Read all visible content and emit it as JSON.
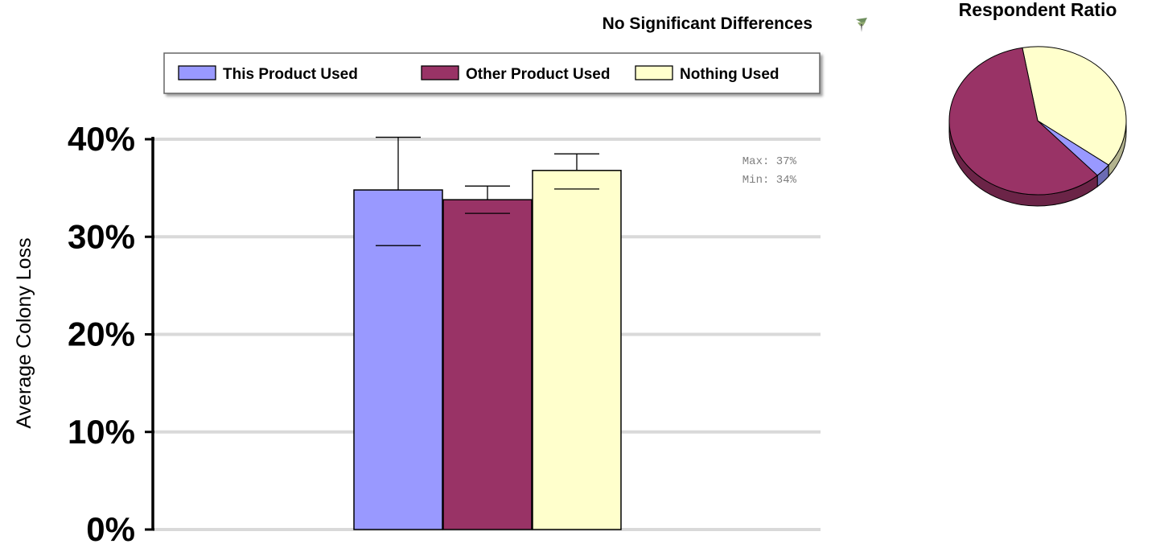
{
  "chart_data": [
    {
      "type": "bar",
      "title": "No Significant Differences",
      "ylabel": "Average Colony Loss",
      "xlabel": "",
      "ylim": [
        0,
        40
      ],
      "yticks": [
        0,
        10,
        20,
        30,
        40
      ],
      "ytick_labels": [
        "0%",
        "10%",
        "20%",
        "30%",
        "40%"
      ],
      "grid": true,
      "legend_position": "top",
      "series": [
        {
          "name": "This Product Used",
          "value": 34.8,
          "err_high": 40.2,
          "err_low": 29.1,
          "color": "#9999ff"
        },
        {
          "name": "Other Product Used",
          "value": 33.8,
          "err_high": 35.2,
          "err_low": 32.4,
          "color": "#993366"
        },
        {
          "name": "Nothing Used",
          "value": 36.8,
          "err_high": 38.5,
          "err_low": 34.9,
          "color": "#ffffcc"
        }
      ],
      "annotation": {
        "max_text": "Max: 37%",
        "min_text": "Min: 34%"
      }
    },
    {
      "type": "pie",
      "title": "Respondent Ratio",
      "slices": [
        {
          "label": "Nothing Used",
          "value": 38,
          "color": "#ffffcc"
        },
        {
          "label": "This Product Used",
          "value": 3,
          "color": "#9999ff"
        },
        {
          "label": "Other Product Used",
          "value": 59,
          "color": "#993366"
        }
      ]
    }
  ],
  "icons": {
    "title_icon": "bee-icon"
  }
}
